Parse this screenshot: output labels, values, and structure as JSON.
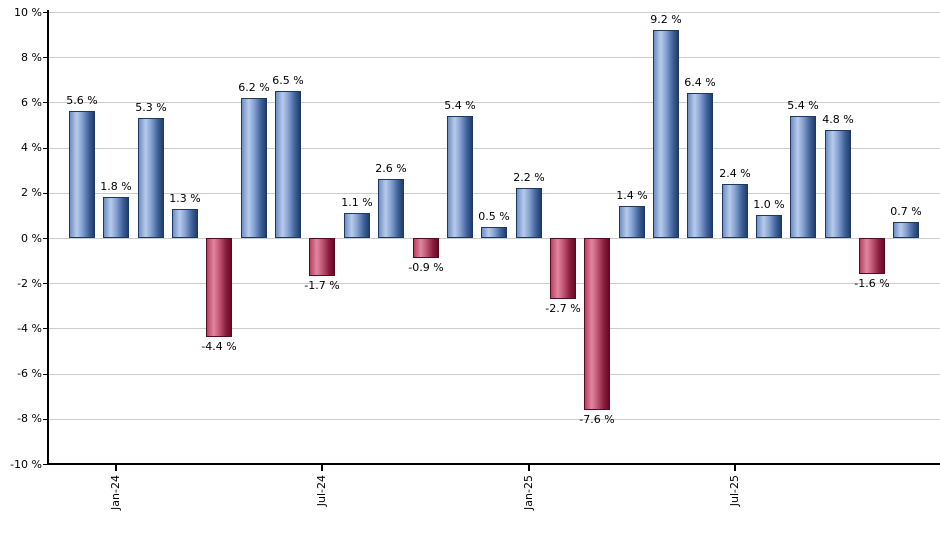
{
  "chart_data": {
    "type": "bar",
    "title": "",
    "xlabel": "",
    "ylabel": "",
    "values": [
      5.6,
      1.8,
      5.3,
      1.3,
      -4.4,
      6.2,
      6.5,
      -1.7,
      1.1,
      2.6,
      -0.9,
      5.4,
      0.5,
      2.2,
      -2.7,
      -7.6,
      1.4,
      9.2,
      6.4,
      2.4,
      1.0,
      5.4,
      4.8,
      -1.6,
      0.7
    ],
    "bar_labels": [
      "5.6 %",
      "1.8 %",
      "5.3 %",
      "1.3 %",
      "-4.4 %",
      "6.2 %",
      "6.5 %",
      "-1.7 %",
      "1.1 %",
      "2.6 %",
      "-0.9 %",
      "5.4 %",
      "0.5 %",
      "2.2 %",
      "-2.7 %",
      "-7.6 %",
      "1.4 %",
      "9.2 %",
      "6.4 %",
      "2.4 %",
      "1.0 %",
      "5.4 %",
      "4.8 %",
      "-1.6 %",
      "0.7 %"
    ],
    "x_ticks": [
      {
        "index": 1,
        "label": "Jan-24"
      },
      {
        "index": 7,
        "label": "Jul-24"
      },
      {
        "index": 13,
        "label": "Jan-25"
      },
      {
        "index": 19,
        "label": "Jul-25"
      }
    ],
    "y_ticks": [
      {
        "value": 10,
        "label": "10 %"
      },
      {
        "value": 8,
        "label": "8 %"
      },
      {
        "value": 6,
        "label": "6 %"
      },
      {
        "value": 4,
        "label": "4 %"
      },
      {
        "value": 2,
        "label": "2 %"
      },
      {
        "value": 0,
        "label": "0 %"
      },
      {
        "value": -2,
        "label": "-2 %"
      },
      {
        "value": -4,
        "label": "-4 %"
      },
      {
        "value": -6,
        "label": "-6 %"
      },
      {
        "value": -8,
        "label": "-8 %"
      },
      {
        "value": -10,
        "label": "-10 %"
      }
    ],
    "ylim": [
      -10,
      10
    ],
    "grid": true,
    "legend": "none",
    "colors": {
      "positive_bar": "#7da0d4",
      "positive_gradient": [
        "#6e90c4",
        "#b7cbec",
        "#87a3d2",
        "#41639c",
        "#223e6a"
      ],
      "negative_bar": "#c44e6e",
      "negative_gradient": [
        "#bb3f62",
        "#e0879f",
        "#c25a77",
        "#8c1f3f",
        "#650a26"
      ],
      "gridline": "#cccccc",
      "axis": "#000000",
      "label_text": "#000000",
      "background": "#ffffff"
    }
  }
}
